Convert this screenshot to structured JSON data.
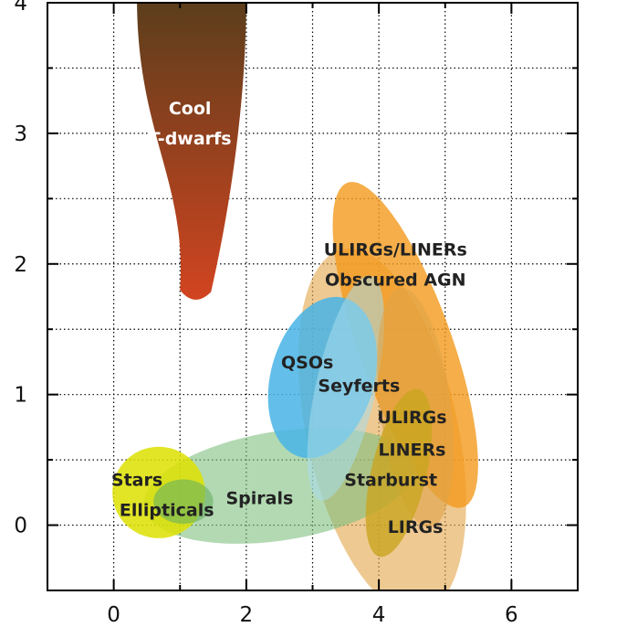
{
  "chart_data": {
    "type": "region-map",
    "title": "",
    "xlabel": "",
    "ylabel": "",
    "xlim": [
      -1,
      7
    ],
    "ylim": [
      -0.5,
      4
    ],
    "grid": true,
    "x_ticks": [
      {
        "value": 0,
        "label": "0"
      },
      {
        "value": 2,
        "label": "2"
      },
      {
        "value": 4,
        "label": "4"
      },
      {
        "value": 6,
        "label": "6"
      }
    ],
    "y_ticks": [
      {
        "value": 0,
        "label": "0"
      },
      {
        "value": 1,
        "label": "1"
      },
      {
        "value": 2,
        "label": "2"
      },
      {
        "value": 3,
        "label": "3"
      },
      {
        "value": 4,
        "label": "4"
      }
    ],
    "regions": [
      {
        "name": "LIRGs",
        "label": "LIRGs",
        "color": "#e3a84f",
        "opacity": 0.62,
        "center": [
          4.05,
          0.72
        ],
        "radii": [
          1.58,
          1.03
        ],
        "angle_deg": -52,
        "label_at": [
          4.55,
          -0.01
        ]
      },
      {
        "name": "ULIRGs/LINERs Obscured AGN",
        "label_lines": [
          "ULIRGs/LINERs",
          "Obscured AGN"
        ],
        "color": "#f39a1c",
        "opacity": 0.8,
        "center": [
          4.4,
          1.38
        ],
        "radii": [
          1.55,
          0.6
        ],
        "angle_deg": -50,
        "label_at": [
          4.25,
          2.0
        ]
      },
      {
        "name": "Spirals",
        "label": "Spirals",
        "color": "#80c080",
        "opacity": 0.6,
        "center": [
          2.5,
          0.3
        ],
        "radii": [
          2.05,
          0.42
        ],
        "angle_deg": 4,
        "label_at": [
          2.2,
          0.21
        ]
      },
      {
        "name": "Stars",
        "label": "Stars",
        "color": "#dde000",
        "opacity": 0.85,
        "center": [
          0.68,
          0.25
        ],
        "radii": [
          0.7,
          0.35
        ],
        "angle_deg": 0,
        "label_at": [
          0.35,
          0.35
        ]
      },
      {
        "name": "Ellipticals",
        "label": "Ellipticals",
        "color": "#68b060",
        "opacity": 0.6,
        "center": [
          1.05,
          0.18
        ],
        "radii": [
          0.45,
          0.17
        ],
        "angle_deg": 0,
        "label_at": [
          0.8,
          0.12
        ]
      },
      {
        "name": "QSOs",
        "label": "QSOs",
        "color": "#48b4e6",
        "opacity": 0.85,
        "center": [
          3.15,
          1.13
        ],
        "radii": [
          0.85,
          0.58
        ],
        "angle_deg": 20,
        "label_at": [
          2.92,
          1.25
        ]
      },
      {
        "name": "Seyferts",
        "label": "Seyferts",
        "color": "#a8dcec",
        "opacity": 0.55,
        "center": [
          3.5,
          1.05
        ],
        "radii": [
          0.95,
          0.42
        ],
        "angle_deg": 62,
        "label_at": [
          3.7,
          1.07
        ]
      },
      {
        "name": "ULIRGs",
        "label": "ULIRGs",
        "color": "#e0a448",
        "opacity": 0.6,
        "center": [
          4.55,
          0.9
        ],
        "radii": [
          0.95,
          0.52
        ],
        "angle_deg": -72,
        "label_at": [
          4.5,
          0.83
        ]
      },
      {
        "name": "Starburst",
        "label": "Starburst",
        "color": "#c9a520",
        "opacity": 0.8,
        "center": [
          4.3,
          0.4
        ],
        "radii": [
          0.72,
          0.38
        ],
        "angle_deg": 58,
        "label_at": [
          4.18,
          0.35
        ]
      },
      {
        "name": "LINERs",
        "label": "LINERs",
        "color": "#d2b030",
        "opacity": 0.0,
        "center": [
          4.5,
          0.6
        ],
        "radii": [
          0.1,
          0.1
        ],
        "angle_deg": 0,
        "label_at": [
          4.5,
          0.58
        ]
      },
      {
        "name": "Cool T-dwarfs",
        "label_lines": [
          "Cool",
          "T-dwarfs"
        ],
        "shape": "teardrop",
        "color_top": "#5a3e1c",
        "color_bottom": "#d24420",
        "top_left_x": 0.35,
        "top_right_x": 2.0,
        "tip": [
          1.22,
          1.73
        ],
        "label_at": [
          1.15,
          3.08
        ]
      }
    ]
  }
}
